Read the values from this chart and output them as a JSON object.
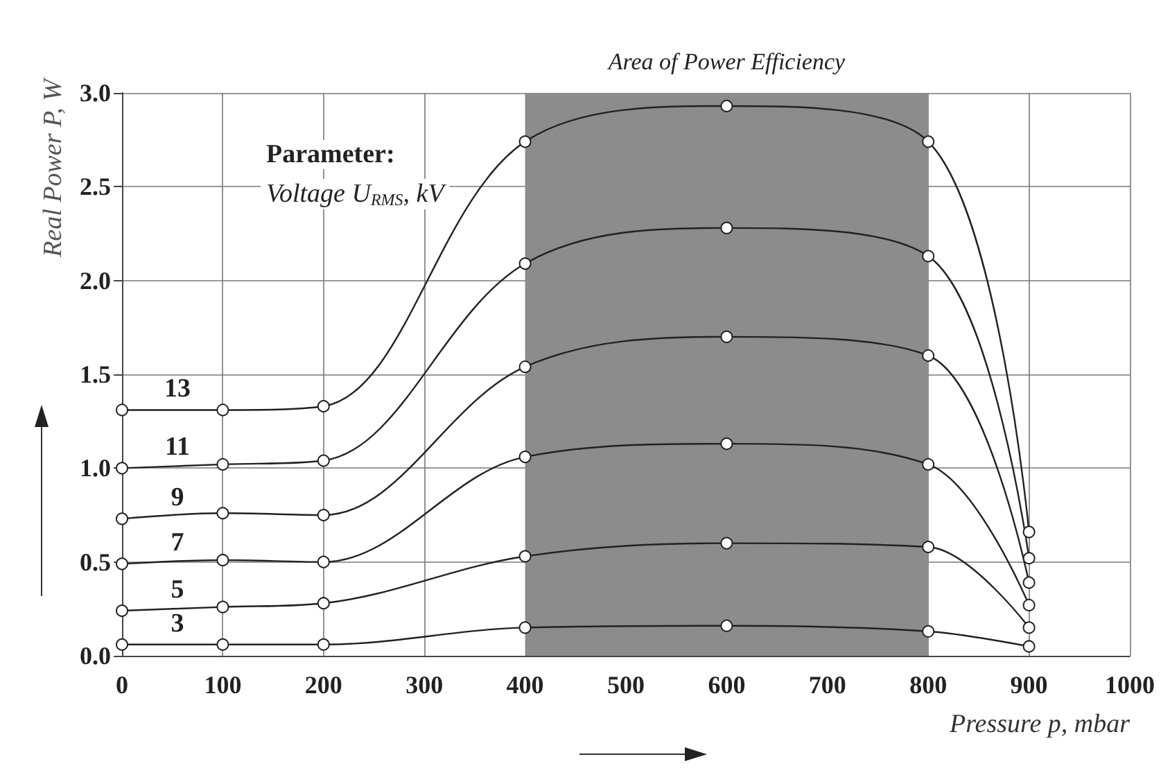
{
  "chart_data": {
    "type": "line",
    "xlabel": "Pressure p, mbar",
    "ylabel": "Real Power P, W",
    "x": [
      0,
      100,
      200,
      400,
      600,
      800,
      900
    ],
    "series": [
      {
        "name": "13",
        "color": "#222222",
        "values": [
          1.31,
          1.31,
          1.33,
          2.74,
          2.93,
          2.74,
          0.66
        ]
      },
      {
        "name": "11",
        "color": "#222222",
        "values": [
          1.0,
          1.02,
          1.04,
          2.09,
          2.28,
          2.13,
          0.52
        ]
      },
      {
        "name": "9",
        "color": "#222222",
        "values": [
          0.73,
          0.76,
          0.75,
          1.54,
          1.7,
          1.6,
          0.39
        ]
      },
      {
        "name": "7",
        "color": "#222222",
        "values": [
          0.49,
          0.51,
          0.5,
          1.06,
          1.13,
          1.02,
          0.27
        ]
      },
      {
        "name": "5",
        "color": "#222222",
        "values": [
          0.24,
          0.26,
          0.28,
          0.53,
          0.6,
          0.58,
          0.15
        ]
      },
      {
        "name": "3",
        "color": "#222222",
        "values": [
          0.06,
          0.06,
          0.06,
          0.15,
          0.16,
          0.13,
          0.05
        ]
      }
    ],
    "xlim": [
      0,
      1000
    ],
    "xticks": [
      0,
      100,
      200,
      300,
      400,
      500,
      600,
      700,
      800,
      900,
      1000
    ],
    "ylim": [
      0,
      3
    ],
    "yticks": [
      {
        "value": 0,
        "label": "0.0"
      },
      {
        "value": 0.5,
        "label": "0.5"
      },
      {
        "value": 1,
        "label": "1.0"
      },
      {
        "value": 1.5,
        "label": "1.5"
      },
      {
        "value": 2,
        "label": "2.0"
      },
      {
        "value": 2.5,
        "label": "2.5"
      },
      {
        "value": 3,
        "label": "3.0"
      }
    ],
    "bands": [
      {
        "axis": "x",
        "from": 400,
        "to": 800,
        "label": "Area of Power Efficiency",
        "color": "#8c8c8c"
      }
    ],
    "annotations": [
      "Parameter:",
      "Voltage U$_{RMS}$, kV"
    ],
    "grid": true,
    "marker": "circle",
    "line_style": "solid",
    "legend": false
  }
}
